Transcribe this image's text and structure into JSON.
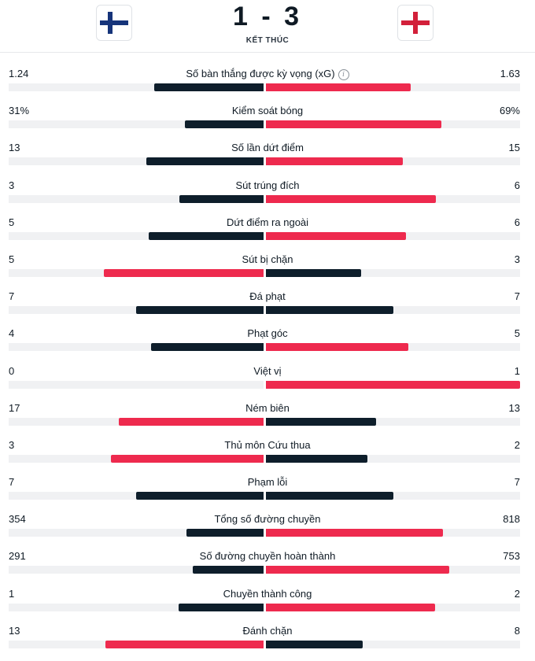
{
  "match": {
    "score": "1 - 3",
    "status": "KẾT THÚC",
    "home_flag_icon": "finland-flag-icon",
    "away_flag_icon": "england-flag-icon"
  },
  "colors": {
    "dark_bar": "#0e1e2b",
    "red_bar": "#ee2a4e",
    "track": "#f0f1f3"
  },
  "stats": [
    {
      "label": "Số bàn thắng được kỳ vọng (xG)",
      "left": "1.24",
      "right": "1.63",
      "left_share": 0.43,
      "right_share": 0.57,
      "left_color": "dark",
      "right_color": "red",
      "info": true
    },
    {
      "label": "Kiểm soát bóng",
      "left": "31%",
      "right": "69%",
      "left_share": 0.31,
      "right_share": 0.69,
      "left_color": "dark",
      "right_color": "red"
    },
    {
      "label": "Số lần dứt điểm",
      "left": "13",
      "right": "15",
      "left_share": 0.46,
      "right_share": 0.54,
      "left_color": "dark",
      "right_color": "red"
    },
    {
      "label": "Sút trúng đích",
      "left": "3",
      "right": "6",
      "left_share": 0.33,
      "right_share": 0.67,
      "left_color": "dark",
      "right_color": "red"
    },
    {
      "label": "Dứt điểm ra ngoài",
      "left": "5",
      "right": "6",
      "left_share": 0.45,
      "right_share": 0.55,
      "left_color": "dark",
      "right_color": "red"
    },
    {
      "label": "Sút bị chặn",
      "left": "5",
      "right": "3",
      "left_share": 0.625,
      "right_share": 0.375,
      "left_color": "red",
      "right_color": "dark"
    },
    {
      "label": "Đá phạt",
      "left": "7",
      "right": "7",
      "left_share": 0.5,
      "right_share": 0.5,
      "left_color": "dark",
      "right_color": "dark"
    },
    {
      "label": "Phạt góc",
      "left": "4",
      "right": "5",
      "left_share": 0.44,
      "right_share": 0.56,
      "left_color": "dark",
      "right_color": "red"
    },
    {
      "label": "Việt vị",
      "left": "0",
      "right": "1",
      "left_share": 0.0,
      "right_share": 1.0,
      "left_color": "dark",
      "right_color": "red"
    },
    {
      "label": "Ném biên",
      "left": "17",
      "right": "13",
      "left_share": 0.567,
      "right_share": 0.433,
      "left_color": "red",
      "right_color": "dark"
    },
    {
      "label": "Thủ môn Cứu thua",
      "left": "3",
      "right": "2",
      "left_share": 0.6,
      "right_share": 0.4,
      "left_color": "red",
      "right_color": "dark"
    },
    {
      "label": "Phạm lỗi",
      "left": "7",
      "right": "7",
      "left_share": 0.5,
      "right_share": 0.5,
      "left_color": "dark",
      "right_color": "dark"
    },
    {
      "label": "Tổng số đường chuyền",
      "left": "354",
      "right": "818",
      "left_share": 0.302,
      "right_share": 0.698,
      "left_color": "dark",
      "right_color": "red"
    },
    {
      "label": "Số đường chuyền hoàn thành",
      "left": "291",
      "right": "753",
      "left_share": 0.279,
      "right_share": 0.721,
      "left_color": "dark",
      "right_color": "red"
    },
    {
      "label": "Chuyền thành công",
      "left": "1",
      "right": "2",
      "left_share": 0.333,
      "right_share": 0.667,
      "left_color": "dark",
      "right_color": "red"
    },
    {
      "label": "Đánh chặn",
      "left": "13",
      "right": "8",
      "left_share": 0.619,
      "right_share": 0.381,
      "left_color": "red",
      "right_color": "dark"
    }
  ]
}
